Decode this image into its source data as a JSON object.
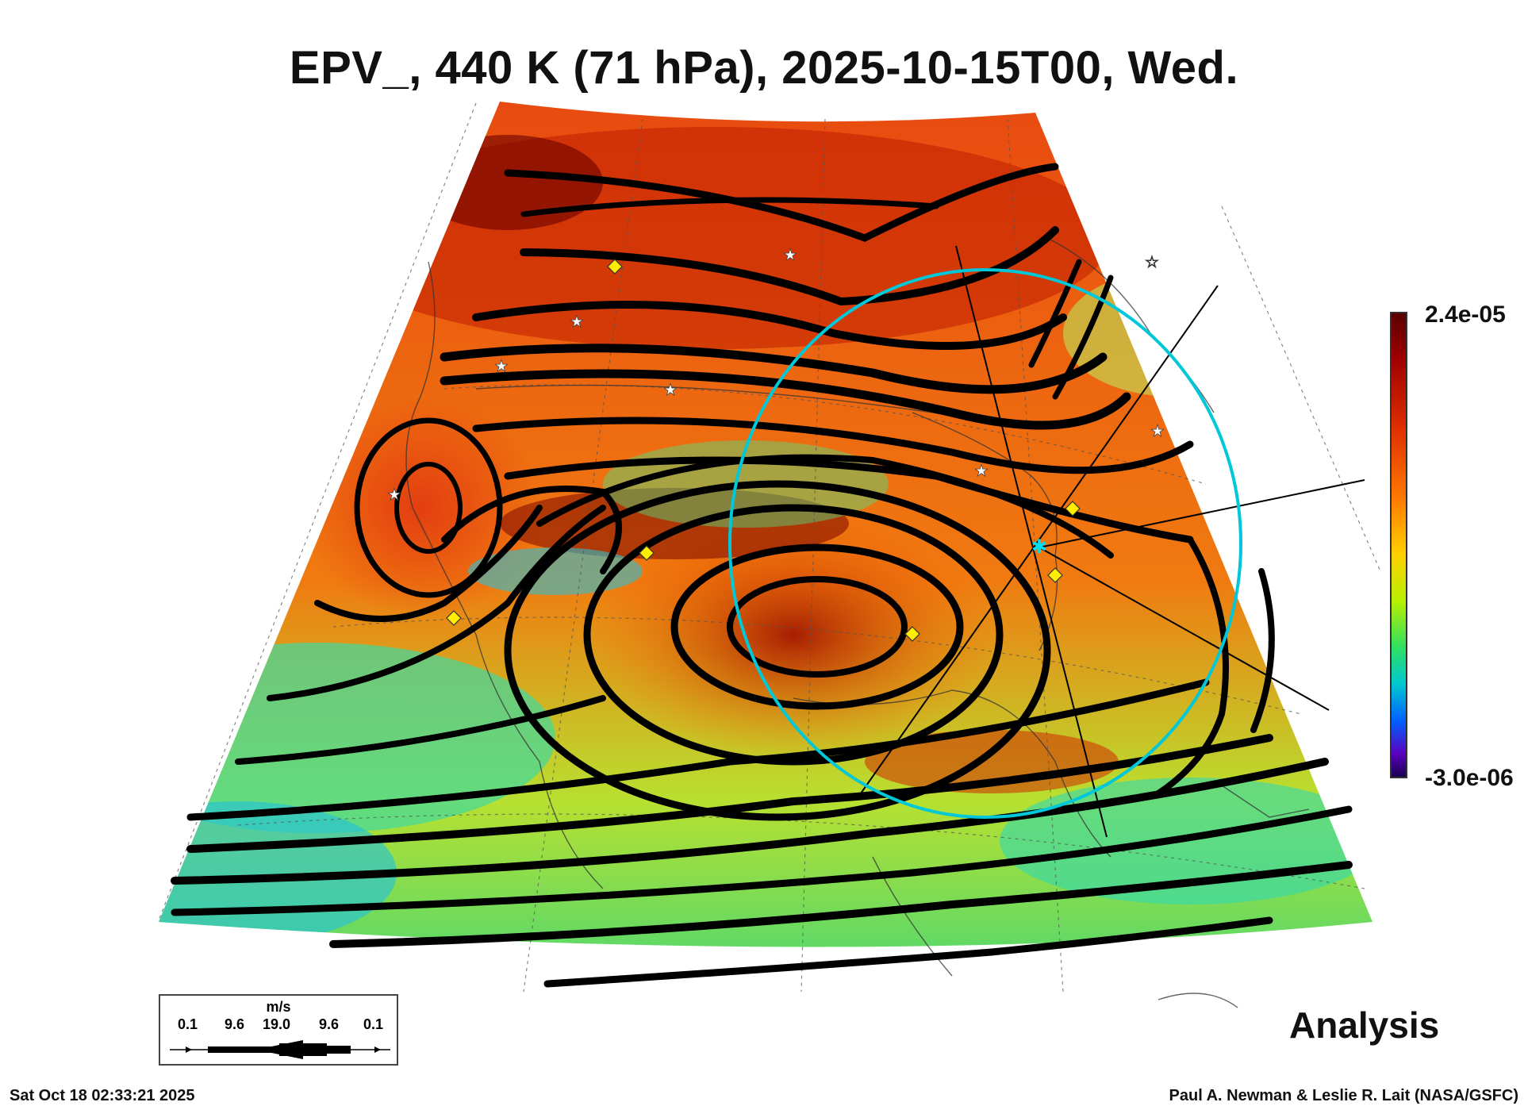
{
  "title": "EPV_, 440 K (71 hPa), 2025-10-15T00, Wed.",
  "colorbar": {
    "max_label": "2.4e-05",
    "min_label": "-3.0e-06",
    "colors": [
      "#5a0000",
      "#a00000",
      "#e03000",
      "#ff7a00",
      "#ffd000",
      "#b8f000",
      "#30e060",
      "#00c8d0",
      "#0060ff",
      "#5a00c0",
      "#1a0050"
    ]
  },
  "legend": {
    "unit": "m/s",
    "ticks": [
      "0.1",
      "9.6",
      "19.0",
      "9.6",
      "0.1"
    ]
  },
  "product_label": "Analysis",
  "timestamp": "Sat Oct 18 02:33:21 2025",
  "credit": "Paul A. Newman & Leslie R. Lait (NASA/GSFC)",
  "markers": {
    "star_color": "#ffffff",
    "diamond_color": "#ffee00",
    "circle_color": "#00d0e0"
  }
}
